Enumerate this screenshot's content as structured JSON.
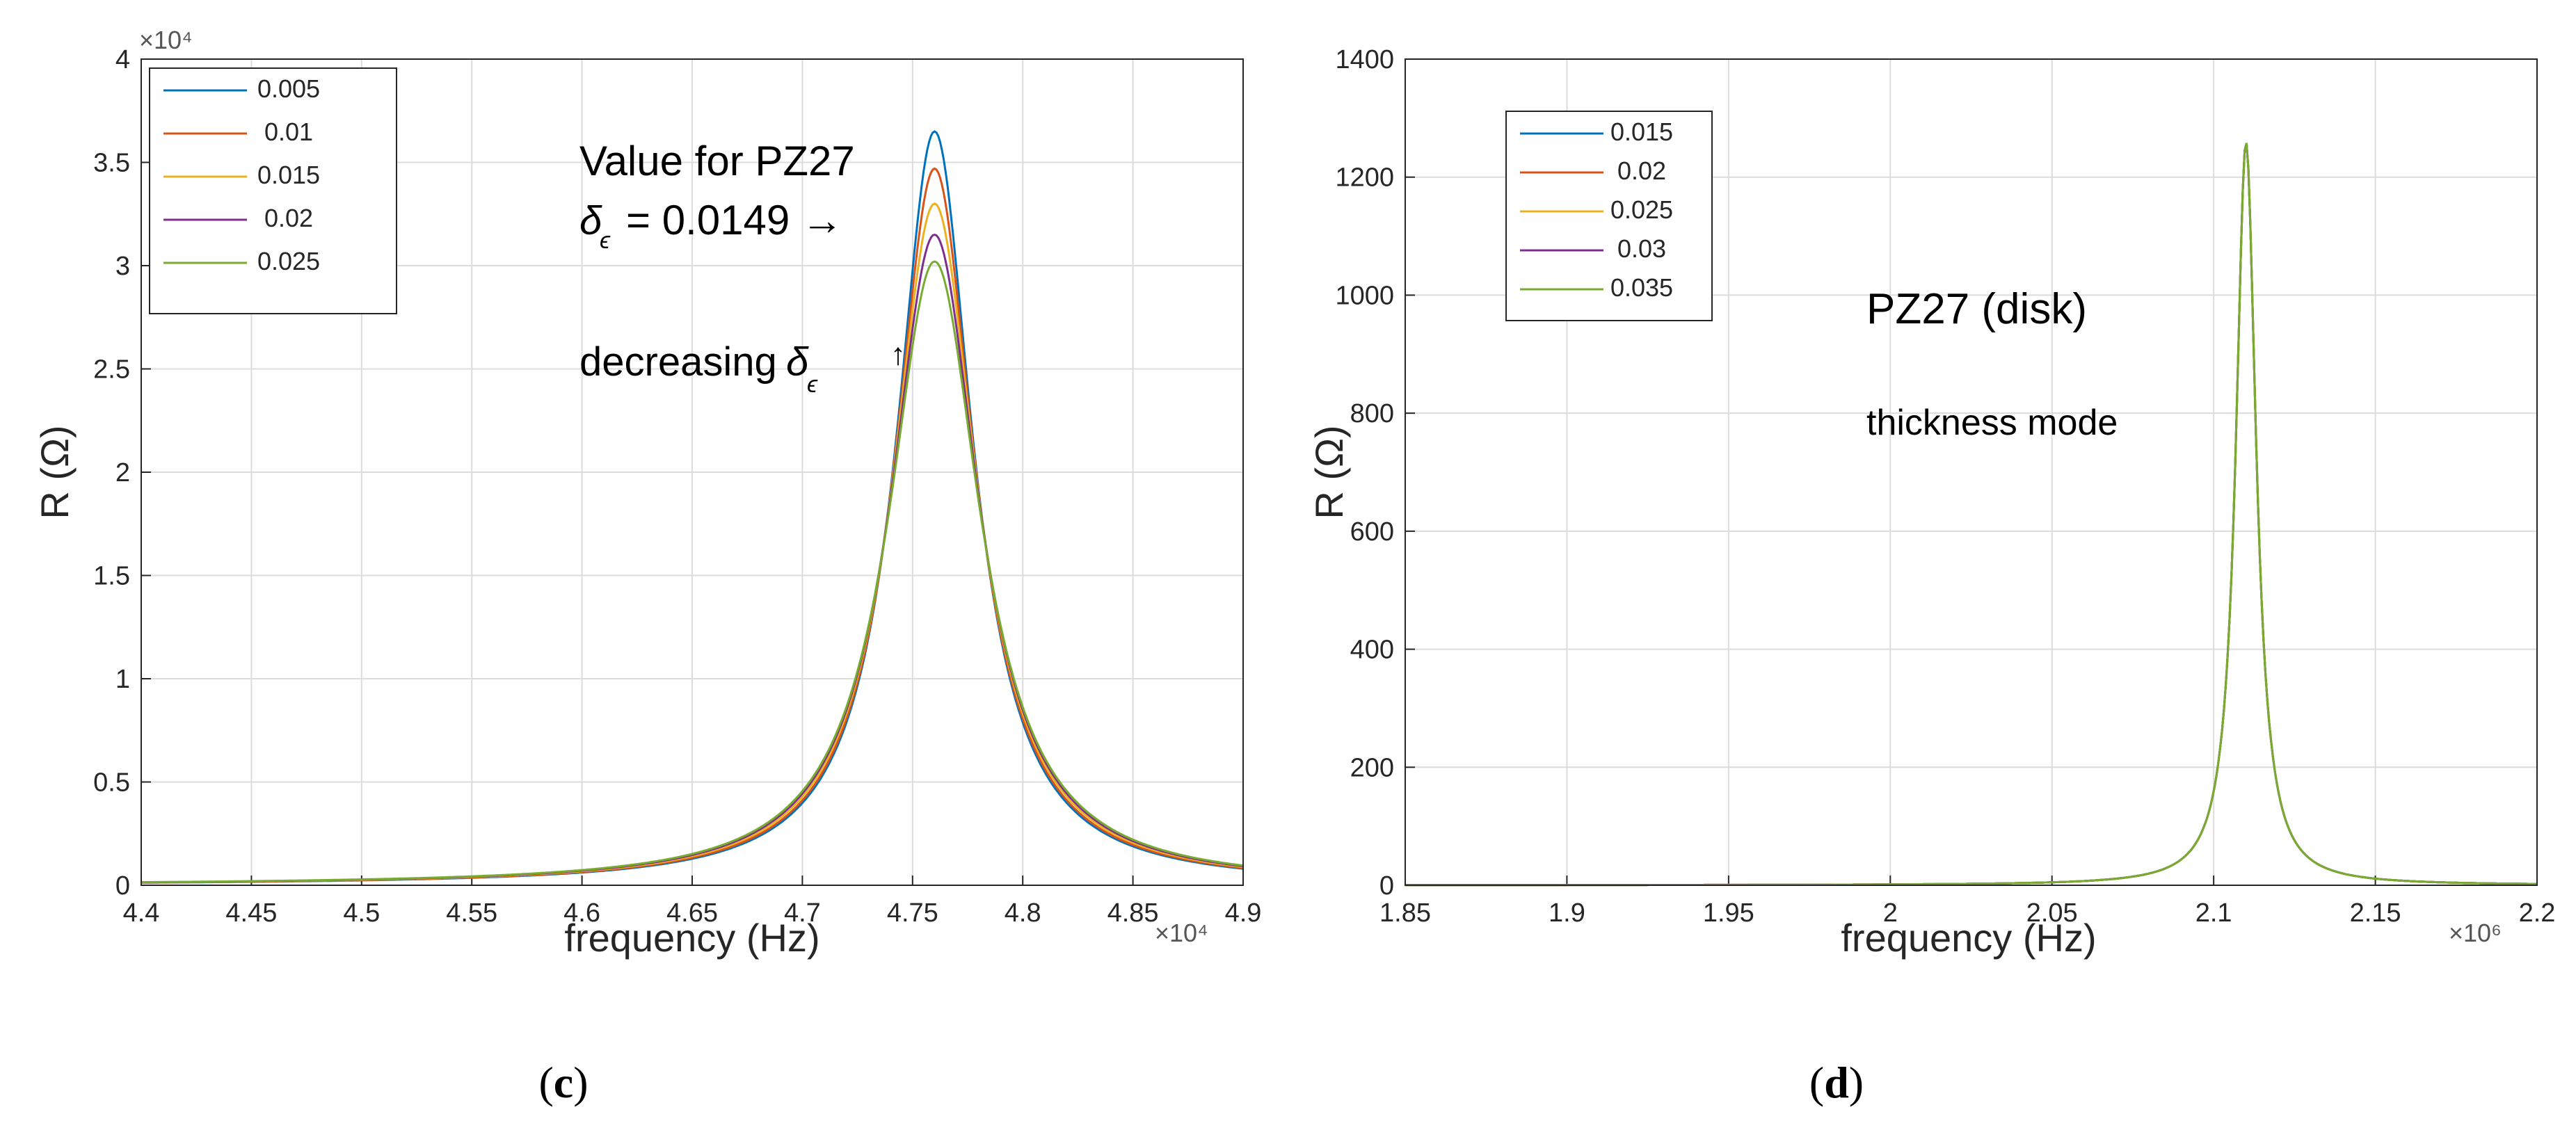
{
  "chart_data": [
    {
      "type": "line",
      "panel_label": "c",
      "xlabel": "frequency (Hz)",
      "ylabel": "R (Ω)",
      "x_multiplier": "×10⁴",
      "y_multiplier": "×10⁴",
      "xlim": [
        4.4,
        4.9
      ],
      "ylim": [
        0,
        4
      ],
      "xticks": [
        "4.4",
        "4.45",
        "4.5",
        "4.55",
        "4.6",
        "4.65",
        "4.7",
        "4.75",
        "4.8",
        "4.85",
        "4.9"
      ],
      "yticks": [
        "0",
        "0.5",
        "1",
        "1.5",
        "2",
        "2.5",
        "3",
        "3.5",
        "4"
      ],
      "grid": true,
      "legend_position": "top-left",
      "series": [
        {
          "name": "0.005",
          "color": "#0072BD",
          "peak_x": 4.76,
          "peak_y": 3.65,
          "gamma": 0.021
        },
        {
          "name": "0.01",
          "color": "#D95319",
          "peak_x": 4.76,
          "peak_y": 3.47,
          "gamma": 0.022
        },
        {
          "name": "0.015",
          "color": "#EDB120",
          "peak_x": 4.76,
          "peak_y": 3.3,
          "gamma": 0.0232
        },
        {
          "name": "0.02",
          "color": "#7E2F8E",
          "peak_x": 4.76,
          "peak_y": 3.15,
          "gamma": 0.0243
        },
        {
          "name": "0.025",
          "color": "#77AC30",
          "peak_x": 4.76,
          "peak_y": 3.02,
          "gamma": 0.0253
        }
      ],
      "annotations": {
        "value_line1": "Value for PZ27",
        "value_line2": "= 0.0149 →",
        "decreasing": "decreasing",
        "delta": "δ",
        "epsilon": "ϵ",
        "arrow": "↑"
      }
    },
    {
      "type": "line",
      "panel_label": "d",
      "xlabel": "frequency (Hz)",
      "ylabel": "R (Ω)",
      "x_multiplier": "×10⁶",
      "xlim": [
        1.85,
        2.2
      ],
      "ylim": [
        0,
        1400
      ],
      "xticks": [
        "1.85",
        "1.9",
        "1.95",
        "2",
        "2.05",
        "2.1",
        "2.15",
        "2.2"
      ],
      "yticks": [
        "0",
        "200",
        "400",
        "600",
        "800",
        "1000",
        "1200",
        "1400"
      ],
      "grid": true,
      "legend_position": "top-left",
      "series": [
        {
          "name": "0.015",
          "color": "#0072BD",
          "peak_x": 2.11,
          "peak_y": 1260,
          "gamma": 0.0038
        },
        {
          "name": "0.02",
          "color": "#D95319",
          "peak_x": 2.11,
          "peak_y": 1260,
          "gamma": 0.0038
        },
        {
          "name": "0.025",
          "color": "#EDB120",
          "peak_x": 2.11,
          "peak_y": 1260,
          "gamma": 0.0038
        },
        {
          "name": "0.03",
          "color": "#7E2F8E",
          "peak_x": 2.11,
          "peak_y": 1260,
          "gamma": 0.0038
        },
        {
          "name": "0.035",
          "color": "#77AC30",
          "peak_x": 2.11,
          "peak_y": 1260,
          "gamma": 0.0038
        }
      ],
      "annotations": {
        "title": "PZ27 (disk)",
        "subtitle": "thickness mode"
      }
    }
  ]
}
